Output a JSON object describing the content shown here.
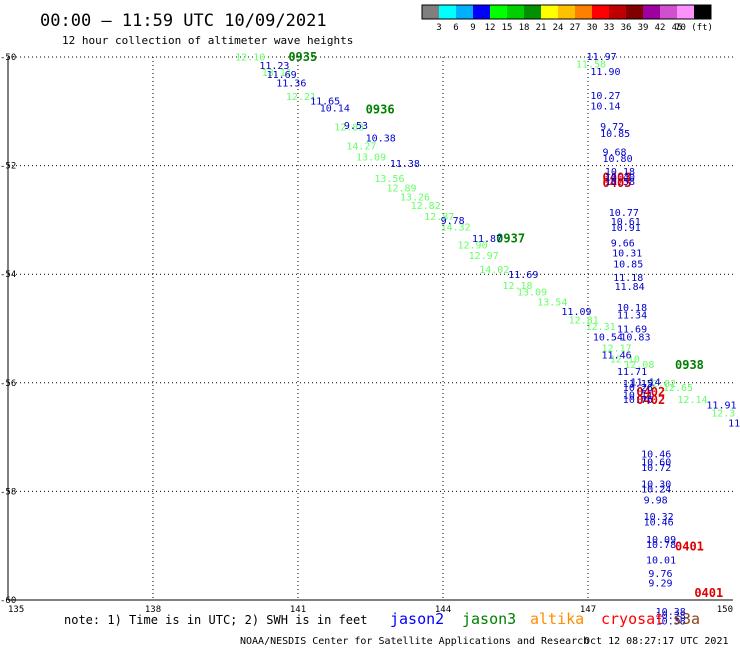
{
  "header": {
    "title": "00:00 – 11:59 UTC 10/09/2021",
    "subtitle": "12 hour collection of altimeter wave heights"
  },
  "colorbar": {
    "colors": [
      "#7f7f7f",
      "#00ffff",
      "#00b0ff",
      "#0000ff",
      "#00ff00",
      "#00d000",
      "#009000",
      "#ffff00",
      "#ffc000",
      "#ff8000",
      "#ff0000",
      "#c00000",
      "#800000",
      "#a000a0",
      "#d050d0",
      "#ff90ff",
      "#000000"
    ],
    "labels": [
      "3",
      "6",
      "9",
      "12",
      "15",
      "18",
      "21",
      "24",
      "27",
      "30",
      "33",
      "36",
      "39",
      "42",
      "45",
      "70 (ft)"
    ]
  },
  "note": "note: 1) Time is in UTC; 2) SWH is in feet",
  "footer": {
    "credit": "NOAA/NESDIS Center for Satellite Applications and Research",
    "timestamp": "Oct 12 08:27:17 UTC 2021"
  },
  "chart_data": {
    "type": "scatter",
    "xlim": [
      135,
      150
    ],
    "ylim": [
      -60,
      -50
    ],
    "x_ticks": [
      135,
      138,
      141,
      144,
      147,
      150
    ],
    "y_ticks": [
      -50,
      -52,
      -54,
      -56,
      -58,
      -60
    ],
    "grid": "dotted",
    "legend": {
      "placement": "bottom-right",
      "entries": [
        {
          "name": "jason2",
          "color": "#0000ff"
        },
        {
          "name": "jason3",
          "color": "#008000"
        },
        {
          "name": "altika",
          "color": "#ff8c00"
        },
        {
          "name": "cryosat",
          "color": "#ff0000"
        },
        {
          "name": "s3a",
          "color": "#8b4513"
        }
      ]
    },
    "series": [
      {
        "name": "jason3",
        "color": "#008000",
        "time_labels": [
          {
            "text": "0935",
            "lon": 140.8,
            "lat": -49.98
          },
          {
            "text": "0936",
            "lon": 142.4,
            "lat": -50.95
          },
          {
            "text": "0937",
            "lon": 145.1,
            "lat": -53.32
          },
          {
            "text": "0938",
            "lon": 148.8,
            "lat": -55.65
          }
        ]
      },
      {
        "name": "cryosat",
        "color": "#e00000",
        "time_labels": [
          {
            "text": "0403",
            "lon": 147.3,
            "lat": -52.2
          },
          {
            "text": "0403",
            "lon": 147.3,
            "lat": -52.3
          },
          {
            "text": "0402",
            "lon": 148.0,
            "lat": -56.15
          },
          {
            "text": "0402",
            "lon": 148.0,
            "lat": -56.3
          },
          {
            "text": "0401",
            "lon": 148.8,
            "lat": -59.0
          },
          {
            "text": "0401",
            "lon": 149.2,
            "lat": -59.85
          }
        ]
      },
      {
        "name": "jason3 SWH",
        "color": "#66ff66",
        "points": [
          {
            "lon": 139.7,
            "lat": -49.99,
            "swh": "12.10"
          },
          {
            "lon": 140.25,
            "lat": -50.28,
            "swh": "13.11"
          },
          {
            "lon": 140.75,
            "lat": -50.72,
            "swh": "12.21"
          },
          {
            "lon": 141.75,
            "lat": -51.28,
            "swh": "12.83"
          },
          {
            "lon": 142.0,
            "lat": -51.63,
            "swh": "14.27"
          },
          {
            "lon": 142.2,
            "lat": -51.83,
            "swh": "13.09"
          },
          {
            "lon": 142.58,
            "lat": -52.23,
            "swh": "13.56"
          },
          {
            "lon": 142.83,
            "lat": -52.4,
            "swh": "12.89"
          },
          {
            "lon": 143.11,
            "lat": -52.57,
            "swh": "13.26"
          },
          {
            "lon": 143.33,
            "lat": -52.73,
            "swh": "12.82"
          },
          {
            "lon": 143.61,
            "lat": -52.93,
            "swh": "12.87"
          },
          {
            "lon": 143.95,
            "lat": -53.12,
            "swh": "14.32"
          },
          {
            "lon": 144.3,
            "lat": -53.45,
            "swh": "12.90"
          },
          {
            "lon": 144.53,
            "lat": -53.65,
            "swh": "12.97"
          },
          {
            "lon": 144.75,
            "lat": -53.9,
            "swh": "14.02"
          },
          {
            "lon": 145.23,
            "lat": -54.2,
            "swh": "12.18"
          },
          {
            "lon": 145.53,
            "lat": -54.32,
            "swh": "13.09"
          },
          {
            "lon": 145.95,
            "lat": -54.5,
            "swh": "13.54"
          },
          {
            "lon": 146.6,
            "lat": -54.83,
            "swh": "12.81"
          },
          {
            "lon": 146.95,
            "lat": -54.95,
            "swh": "12.31"
          },
          {
            "lon": 147.28,
            "lat": -55.35,
            "swh": "12.17"
          },
          {
            "lon": 147.45,
            "lat": -55.55,
            "swh": "12.10"
          },
          {
            "lon": 147.75,
            "lat": -55.65,
            "swh": "12.08"
          },
          {
            "lon": 148.2,
            "lat": -56.0,
            "swh": "12.02"
          },
          {
            "lon": 148.55,
            "lat": -56.08,
            "swh": "12.65"
          },
          {
            "lon": 148.85,
            "lat": -56.3,
            "swh": "12.14"
          },
          {
            "lon": 149.55,
            "lat": -56.55,
            "swh": "12.3"
          },
          {
            "lon": 146.75,
            "lat": -50.12,
            "swh": "11.58"
          }
        ]
      },
      {
        "name": "jason2 SWH",
        "color": "#0000cc",
        "points": [
          {
            "lon": 140.2,
            "lat": -50.15,
            "swh": "11.23"
          },
          {
            "lon": 140.35,
            "lat": -50.31,
            "swh": "11.69"
          },
          {
            "lon": 140.55,
            "lat": -50.47,
            "swh": "11.36"
          },
          {
            "lon": 141.25,
            "lat": -50.8,
            "swh": "11.65"
          },
          {
            "lon": 141.45,
            "lat": -50.93,
            "swh": "10.14"
          },
          {
            "lon": 141.95,
            "lat": -51.25,
            "swh": "9.53"
          },
          {
            "lon": 142.4,
            "lat": -51.48,
            "swh": "10.38"
          },
          {
            "lon": 142.9,
            "lat": -51.95,
            "swh": "11.38"
          },
          {
            "lon": 143.95,
            "lat": -53.0,
            "swh": "9.78"
          },
          {
            "lon": 144.6,
            "lat": -53.33,
            "swh": "11.87"
          },
          {
            "lon": 145.35,
            "lat": -54.0,
            "swh": "11.69"
          },
          {
            "lon": 146.45,
            "lat": -54.68,
            "swh": "11.09"
          },
          {
            "lon": 147.1,
            "lat": -55.15,
            "swh": "10.54"
          },
          {
            "lon": 147.28,
            "lat": -55.48,
            "swh": "11.46"
          },
          {
            "lon": 147.6,
            "lat": -55.78,
            "swh": "11.71"
          },
          {
            "lon": 147.88,
            "lat": -55.98,
            "swh": "11.14"
          },
          {
            "lon": 146.97,
            "lat": -49.98,
            "swh": "11.97"
          },
          {
            "lon": 147.05,
            "lat": -50.26,
            "swh": "11.90"
          },
          {
            "lon": 147.05,
            "lat": -50.7,
            "swh": "10.27"
          },
          {
            "lon": 147.05,
            "lat": -50.89,
            "swh": "10.14"
          },
          {
            "lon": 147.25,
            "lat": -51.27,
            "swh": "9.72"
          },
          {
            "lon": 147.25,
            "lat": -51.4,
            "swh": "10.85"
          },
          {
            "lon": 147.3,
            "lat": -51.74,
            "swh": "9.68"
          },
          {
            "lon": 147.3,
            "lat": -51.86,
            "swh": "10.80"
          },
          {
            "lon": 147.35,
            "lat": -52.1,
            "swh": "10.18"
          },
          {
            "lon": 147.35,
            "lat": -52.2,
            "swh": "10.40"
          },
          {
            "lon": 147.35,
            "lat": -52.28,
            "swh": "10.58"
          },
          {
            "lon": 147.43,
            "lat": -52.85,
            "swh": "10.77"
          },
          {
            "lon": 147.47,
            "lat": -53.02,
            "swh": "10.61"
          },
          {
            "lon": 147.47,
            "lat": -53.13,
            "swh": "10.91"
          },
          {
            "lon": 147.47,
            "lat": -53.42,
            "swh": "9.66"
          },
          {
            "lon": 147.5,
            "lat": -53.6,
            "swh": "10.31"
          },
          {
            "lon": 147.52,
            "lat": -53.8,
            "swh": "10.85"
          },
          {
            "lon": 147.52,
            "lat": -54.05,
            "swh": "11.18"
          },
          {
            "lon": 147.55,
            "lat": -54.22,
            "swh": "11.84"
          },
          {
            "lon": 147.6,
            "lat": -54.6,
            "swh": "10.18"
          },
          {
            "lon": 147.6,
            "lat": -54.74,
            "swh": "11.34"
          },
          {
            "lon": 147.6,
            "lat": -55.0,
            "swh": "11.69"
          },
          {
            "lon": 147.67,
            "lat": -55.15,
            "swh": "10.83"
          },
          {
            "lon": 147.72,
            "lat": -56.0,
            "swh": "11.15"
          },
          {
            "lon": 147.72,
            "lat": -56.08,
            "swh": "10.26"
          },
          {
            "lon": 147.72,
            "lat": -56.22,
            "swh": "10.11"
          },
          {
            "lon": 147.72,
            "lat": -56.3,
            "swh": "10.76"
          },
          {
            "lon": 149.45,
            "lat": -56.4,
            "swh": "11.91"
          },
          {
            "lon": 149.9,
            "lat": -56.73,
            "swh": "11"
          },
          {
            "lon": 148.1,
            "lat": -57.3,
            "swh": "10.46"
          },
          {
            "lon": 148.1,
            "lat": -57.45,
            "swh": "10.60"
          },
          {
            "lon": 148.1,
            "lat": -57.55,
            "swh": "10.72"
          },
          {
            "lon": 148.1,
            "lat": -57.85,
            "swh": "10.30"
          },
          {
            "lon": 148.1,
            "lat": -57.95,
            "swh": "10.24"
          },
          {
            "lon": 148.15,
            "lat": -58.15,
            "swh": "9.98"
          },
          {
            "lon": 148.15,
            "lat": -58.45,
            "swh": "10.32"
          },
          {
            "lon": 148.15,
            "lat": -58.55,
            "swh": "10.46"
          },
          {
            "lon": 148.2,
            "lat": -58.88,
            "swh": "10.09"
          },
          {
            "lon": 148.2,
            "lat": -58.97,
            "swh": "10.78"
          },
          {
            "lon": 148.2,
            "lat": -59.25,
            "swh": "10.01"
          },
          {
            "lon": 148.25,
            "lat": -59.5,
            "swh": "9.76"
          },
          {
            "lon": 148.25,
            "lat": -59.68,
            "swh": "9.29"
          },
          {
            "lon": 148.4,
            "lat": -60.2,
            "swh": "10.38"
          },
          {
            "lon": 148.4,
            "lat": -60.28,
            "swh": "10.28"
          },
          {
            "lon": 148.4,
            "lat": -60.38,
            "swh": "10.38"
          }
        ]
      }
    ]
  }
}
